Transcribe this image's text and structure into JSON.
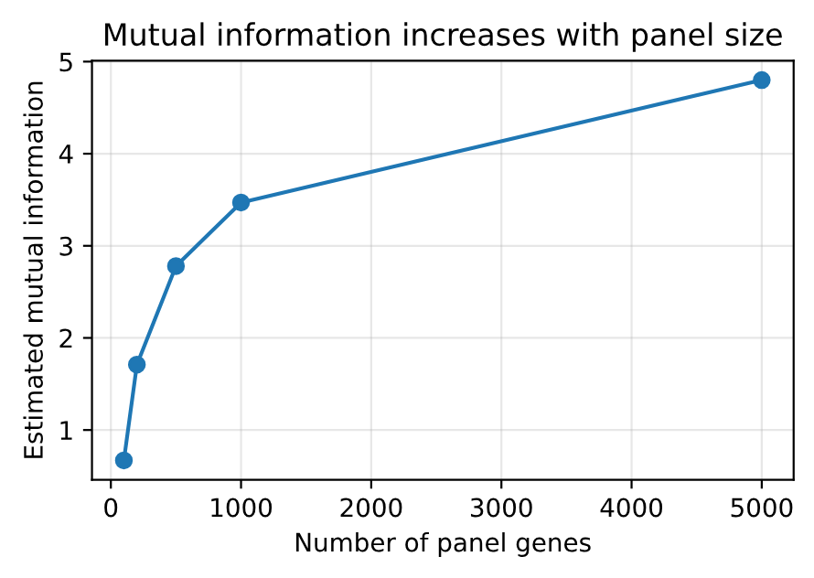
{
  "chart_data": {
    "type": "line",
    "title": "Mutual information increases with panel size",
    "xlabel": "Number of panel genes",
    "ylabel": "Estimated mutual information",
    "x": [
      100,
      200,
      500,
      1000,
      5000
    ],
    "series": [
      {
        "color": "#1f77b4",
        "values": [
          0.67,
          1.71,
          2.78,
          3.47,
          4.8
        ]
      }
    ],
    "xlim": [
      -145,
      5245
    ],
    "xticks": [
      0,
      1000,
      2000,
      3000,
      4000,
      5000
    ],
    "ylim": [
      0.46,
      5.01
    ],
    "yticks": [
      1,
      2,
      3,
      4,
      5
    ],
    "grid": true,
    "marker": "circle",
    "line_style": "solid",
    "legend": false
  }
}
